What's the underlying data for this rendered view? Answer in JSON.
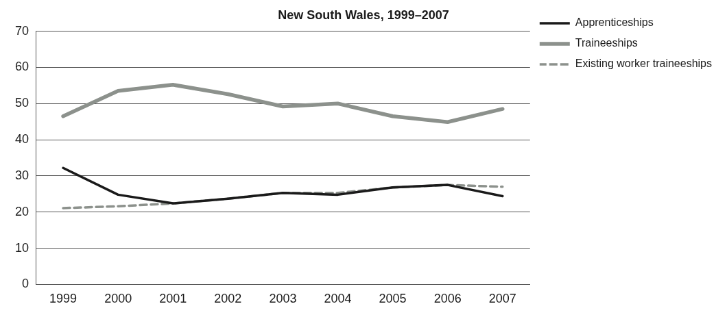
{
  "chart_data": {
    "type": "line",
    "title": "New South Wales, 1999–2007",
    "categories": [
      "1999",
      "2000",
      "2001",
      "2002",
      "2003",
      "2004",
      "2005",
      "2006",
      "2007"
    ],
    "series": [
      {
        "name": "Apprenticeships",
        "color": "#1a1a1a",
        "values": [
          32.2,
          24.8,
          22.4,
          23.7,
          25.3,
          24.8,
          26.8,
          27.5,
          24.4
        ]
      },
      {
        "name": "Traineeships",
        "color": "#8c918c",
        "values": [
          46.5,
          53.5,
          55.2,
          52.6,
          49.2,
          50.0,
          46.5,
          44.9,
          48.5
        ]
      },
      {
        "name": "Existing worker traineeships",
        "color": "#8c918c",
        "line_style": "dashed",
        "values": [
          21.1,
          21.6,
          22.4,
          23.7,
          25.3,
          25.3,
          26.8,
          27.5,
          27.0
        ]
      }
    ],
    "ylim": [
      0,
      70
    ],
    "yticks": [
      0,
      10,
      20,
      30,
      40,
      50,
      60,
      70
    ],
    "grid": "y",
    "legend": "top right",
    "marker": "none"
  }
}
